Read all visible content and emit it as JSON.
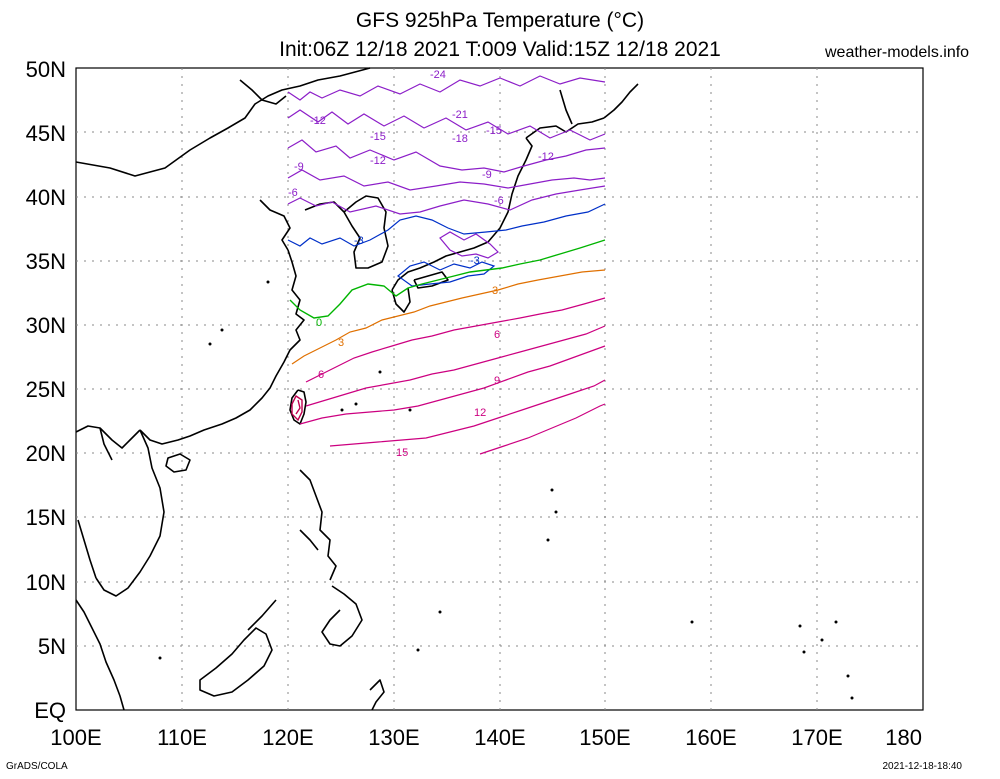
{
  "header": {
    "title_line1": "GFS 925hPa Temperature (°C)",
    "title_line2": "Init:06Z 12/18 2021 T:009 Valid:15Z 12/18 2021",
    "site": "weather-models.info"
  },
  "footer": {
    "left": "GrADS/COLA",
    "right": "2021-12-18-18:40"
  },
  "axes": {
    "x_labels": [
      "100E",
      "110E",
      "120E",
      "130E",
      "140E",
      "150E",
      "160E",
      "170E",
      "180"
    ],
    "y_labels": [
      "50N",
      "45N",
      "40N",
      "35N",
      "30N",
      "25N",
      "20N",
      "15N",
      "10N",
      "5N",
      "EQ"
    ]
  },
  "colors": {
    "zero": "#00b400",
    "warm3": "#e07000",
    "warm": "#cc0080",
    "warm_hot": "#c00050",
    "cold3": "#0030c8",
    "cold": "#8c1ec8",
    "coast": "#000000",
    "grid": "#888888"
  },
  "contours": {
    "zero_label": "0",
    "warm_labels": [
      "3",
      "6",
      "9",
      "12",
      "15"
    ],
    "cold_labels": [
      "-3",
      "-6",
      "-9",
      "-12",
      "-15",
      "-18",
      "-21",
      "-24"
    ]
  }
}
